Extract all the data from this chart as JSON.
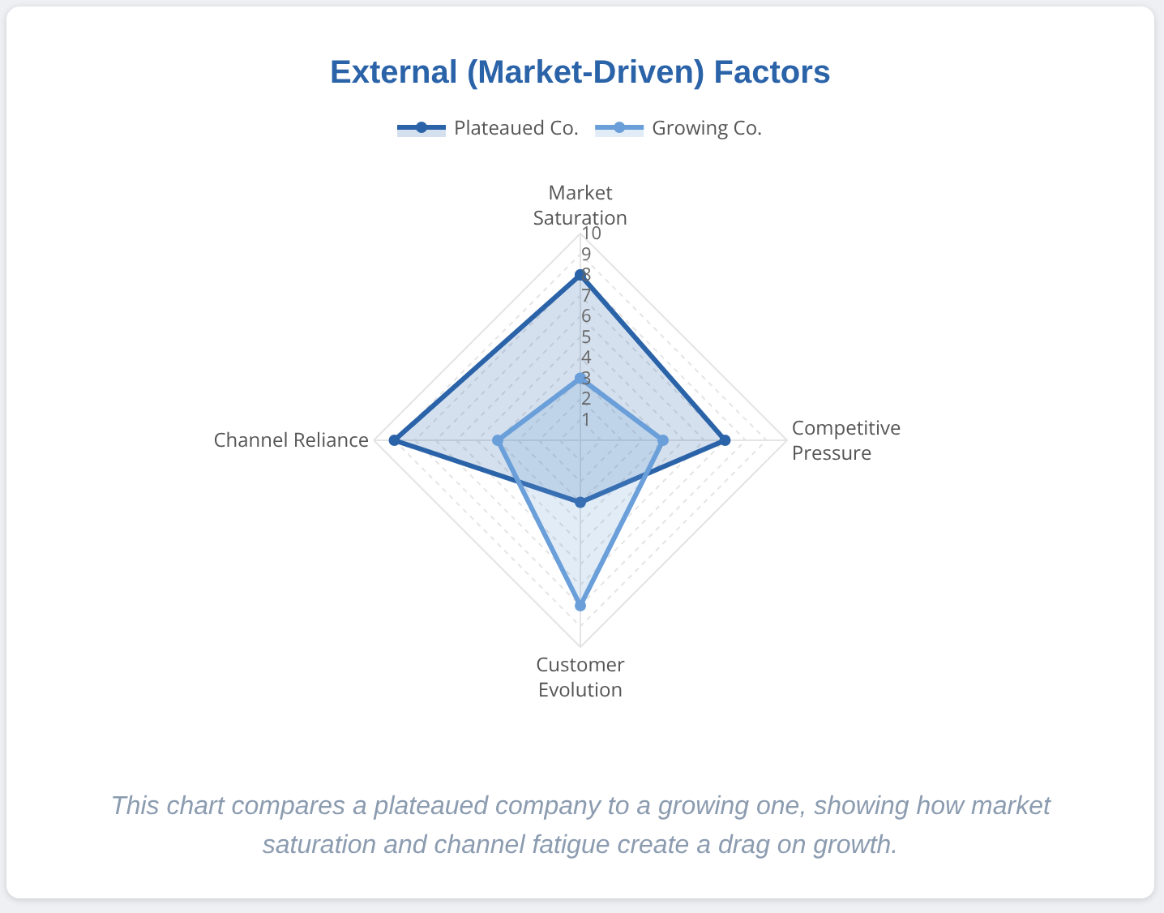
{
  "chart_data": {
    "type": "radar",
    "title": "External (Market-Driven) Factors",
    "categories": [
      "Market Saturation",
      "Competitive Pressure",
      "Customer Evolution",
      "Channel Reliance"
    ],
    "series": [
      {
        "name": "Plateaued Co.",
        "color": "#2b63a9",
        "values": [
          8,
          7,
          3,
          9
        ]
      },
      {
        "name": "Growing Co.",
        "color": "#6a9fd9",
        "values": [
          3,
          4,
          8,
          4
        ]
      }
    ],
    "ylim": [
      0,
      10
    ],
    "yticks": [
      1,
      2,
      3,
      4,
      5,
      6,
      7,
      8,
      9,
      10
    ],
    "grid": true,
    "legend": "top",
    "marker": "circle",
    "annotations": [
      "This chart compares a plateaued company to a growing one, showing how market saturation and channel fatigue create a drag on growth."
    ]
  }
}
